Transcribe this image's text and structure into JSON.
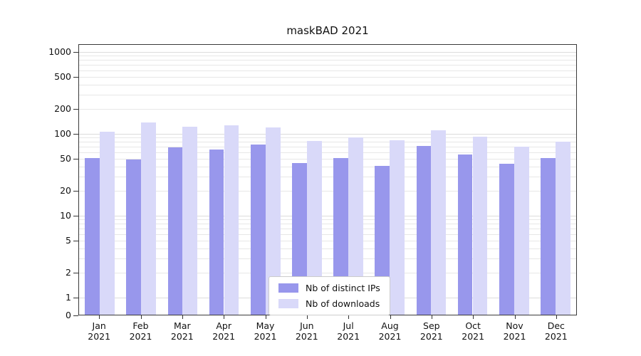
{
  "title": "maskBAD 2021",
  "chart_data": {
    "type": "bar",
    "yscale": "symlog",
    "title": "maskBAD 2021",
    "categories": [
      "Jan",
      "Feb",
      "Mar",
      "Apr",
      "May",
      "Jun",
      "Jul",
      "Aug",
      "Sep",
      "Oct",
      "Nov",
      "Dec"
    ],
    "category_year": "2021",
    "series": [
      {
        "name": "Nb of distinct IPs",
        "color": "#9897ec",
        "values": [
          50,
          48,
          67,
          63,
          72,
          43,
          50,
          40,
          70,
          55,
          42,
          50
        ]
      },
      {
        "name": "Nb of downloads",
        "color": "#d9d9f9",
        "values": [
          105,
          135,
          120,
          125,
          118,
          80,
          88,
          82,
          108,
          90,
          68,
          78
        ]
      }
    ],
    "yticks": [
      0,
      1,
      2,
      5,
      10,
      20,
      50,
      100,
      200,
      500,
      1000
    ],
    "ylim": [
      0,
      1000
    ],
    "grid": "horizontal, log minor and major lines",
    "legend_position": "lower center"
  },
  "colors": {
    "grid_minor": "#e7e7e7",
    "grid_major": "#dcdcdc",
    "axis": "#3a3a3a"
  }
}
